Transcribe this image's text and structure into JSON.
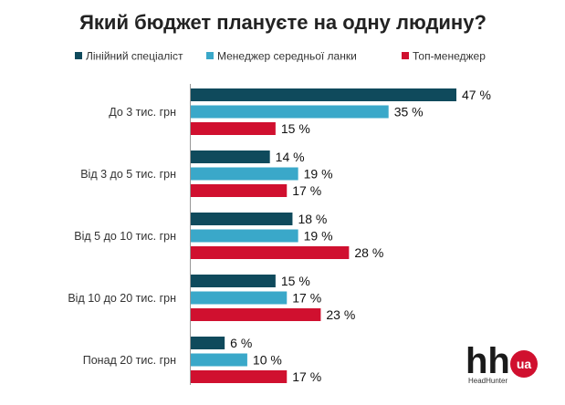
{
  "chart_data": {
    "type": "bar",
    "orientation": "horizontal",
    "title": "Який бюджет плануєте на одну людину?",
    "categories": [
      "До 3 тис. грн",
      "Від 3 до 5 тис. грн",
      "Від 5 до 10 тис. грн",
      "Від 10 до 20 тис. грн",
      "Понад 20 тис. грн"
    ],
    "series": [
      {
        "name": "Лінійний спеціаліст",
        "color": "#0f4a5c",
        "values": [
          47,
          14,
          18,
          15,
          6
        ],
        "labels": [
          "47 %",
          "14 %",
          "18 %",
          "15 %",
          "6 %"
        ]
      },
      {
        "name": "Менеджер середньої ланки",
        "color": "#3aa8c9",
        "values": [
          35,
          19,
          19,
          17,
          10
        ],
        "labels": [
          "35 %",
          "19 %",
          "19 %",
          "17 %",
          "10 %"
        ]
      },
      {
        "name": "Топ-менеджер",
        "color": "#d0102f",
        "values": [
          15,
          17,
          28,
          23,
          17
        ],
        "labels": [
          "15 %",
          "17 %",
          "28 %",
          "23 %",
          "17 %"
        ]
      }
    ],
    "xlim": [
      0,
      47
    ],
    "grid": false,
    "legend_position": "top"
  },
  "logo": {
    "main": "hh",
    "badge": "ua",
    "sub": "HeadHunter",
    "badge_color": "#d0102f"
  }
}
